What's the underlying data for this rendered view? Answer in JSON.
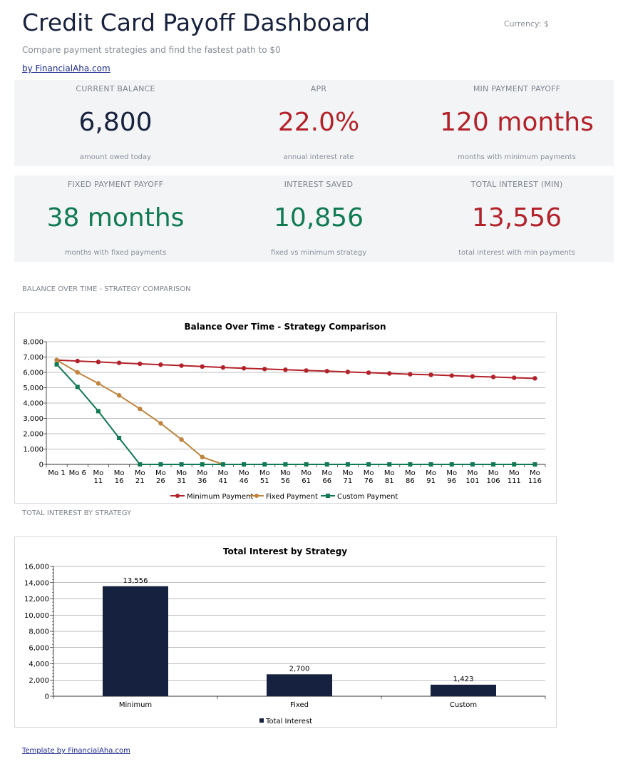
{
  "header": {
    "title": "Credit Card Payoff Dashboard",
    "currency": "Currency: $",
    "subtitle": "Compare payment strategies and find the fastest path to $0",
    "byline": "by FinancialAha.com"
  },
  "kpis": [
    {
      "label": "CURRENT BALANCE",
      "value": "6,800",
      "sub": "amount owed today"
    },
    {
      "label": "APR",
      "value": "22.0%",
      "sub": "annual interest rate"
    },
    {
      "label": "MIN PAYMENT PAYOFF",
      "value": "120 months",
      "sub": "months with minimum payments"
    },
    {
      "label": "FIXED PAYMENT PAYOFF",
      "value": "38 months",
      "sub": "months with fixed payments"
    },
    {
      "label": "INTEREST SAVED",
      "value": "10,856",
      "sub": "fixed vs minimum strategy"
    },
    {
      "label": "TOTAL INTEREST (MIN)",
      "value": "13,556",
      "sub": "total interest with min payments"
    }
  ],
  "colors": {
    "navy": "#18213d",
    "red": "#b3222a",
    "green": "#107a52",
    "min_line": "#b3222a",
    "fixed_line": "#c0843d",
    "custom_line": "#107a52",
    "bar": "#15213f"
  },
  "sections": {
    "balance_label": "BALANCE OVER TIME - STRATEGY COMPARISON",
    "interest_label": "TOTAL INTEREST BY STRATEGY"
  },
  "footer": {
    "link": "Template by FinancialAha.com"
  },
  "chart_data": [
    {
      "type": "line",
      "title": "Balance Over Time - Strategy Comparison",
      "categories": [
        "Mo 1",
        "Mo 6",
        "Mo 11",
        "Mo 16",
        "Mo 21",
        "Mo 26",
        "Mo 31",
        "Mo 36",
        "Mo 41",
        "Mo 46",
        "Mo 51",
        "Mo 56",
        "Mo 61",
        "Mo 66",
        "Mo 71",
        "Mo 76",
        "Mo 81",
        "Mo 86",
        "Mo 91",
        "Mo 96",
        "Mo 101",
        "Mo 106",
        "Mo 111",
        "Mo 116"
      ],
      "ylim": [
        0,
        8000
      ],
      "yticks": [
        "0",
        "1,000",
        "2,000",
        "3,000",
        "4,000",
        "5,000",
        "6,000",
        "7,000",
        "8,000"
      ],
      "grid": true,
      "legend": "bottom",
      "series": [
        {
          "name": "Minimum Payment",
          "values": [
            6800,
            6740,
            6680,
            6620,
            6560,
            6500,
            6440,
            6380,
            6320,
            6270,
            6220,
            6170,
            6120,
            6080,
            6030,
            5980,
            5930,
            5880,
            5840,
            5790,
            5740,
            5700,
            5650,
            5610
          ]
        },
        {
          "name": "Fixed Payment",
          "values": [
            6800,
            6000,
            5280,
            4500,
            3620,
            2680,
            1620,
            480,
            0,
            0,
            0,
            0,
            0,
            0,
            0,
            0,
            0,
            0,
            0,
            0,
            0,
            0,
            0,
            0
          ]
        },
        {
          "name": "Custom Payment",
          "values": [
            6520,
            5050,
            3470,
            1720,
            0,
            0,
            0,
            0,
            0,
            0,
            0,
            0,
            0,
            0,
            0,
            0,
            0,
            0,
            0,
            0,
            0,
            0,
            0,
            0
          ]
        }
      ]
    },
    {
      "type": "bar",
      "title": "Total Interest by Strategy",
      "categories": [
        "Minimum",
        "Fixed",
        "Custom"
      ],
      "values": [
        13556,
        2700,
        1423
      ],
      "data_labels": [
        "13,556",
        "2,700",
        "1,423"
      ],
      "ylim": [
        0,
        16000
      ],
      "yticks": [
        "0",
        "2,000",
        "4,000",
        "6,000",
        "8,000",
        "10,000",
        "12,000",
        "14,000",
        "16,000"
      ],
      "series_name": "Total Interest",
      "grid": true,
      "legend": "bottom"
    }
  ]
}
